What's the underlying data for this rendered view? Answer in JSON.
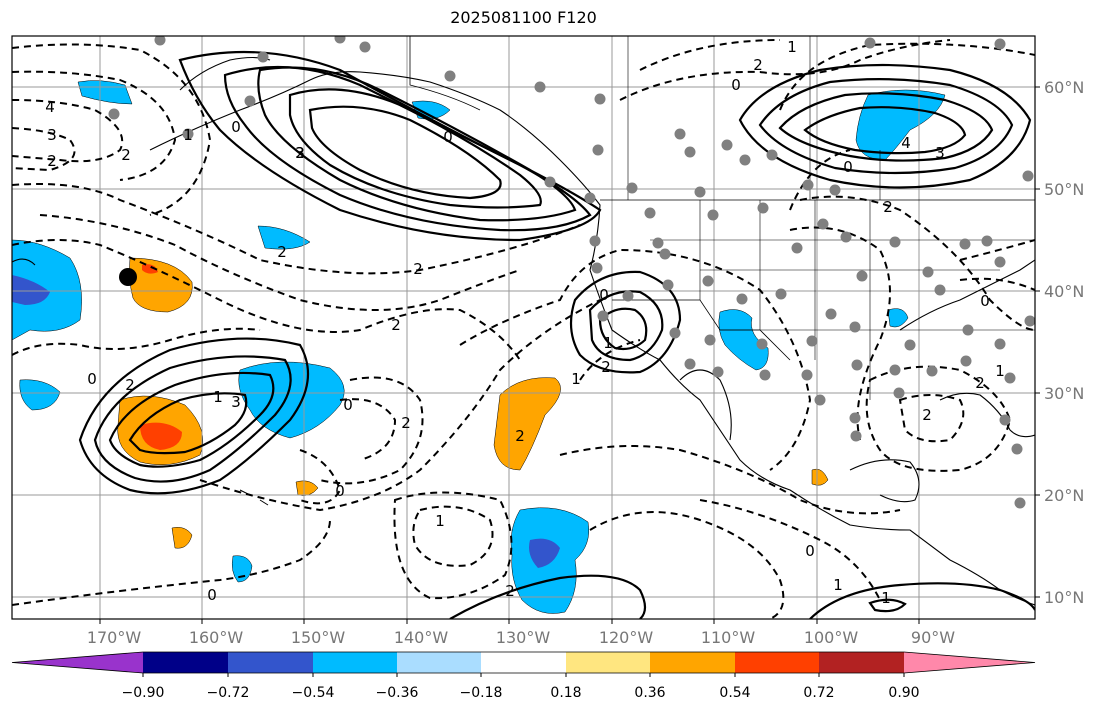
{
  "title": "2025081100 F120",
  "x_ticks": [
    "170°W",
    "160°W",
    "150°W",
    "140°W",
    "130°W",
    "120°W",
    "110°W",
    "100°W",
    "90°W"
  ],
  "y_ticks": [
    "60°N",
    "50°N",
    "40°N",
    "30°N",
    "20°N",
    "10°N"
  ],
  "colorbar": {
    "tick_labels": [
      "−0.90",
      "−0.72",
      "−0.54",
      "−0.36",
      "−0.18",
      "0.18",
      "0.36",
      "0.54",
      "0.72",
      "0.90"
    ],
    "colors": [
      "#9933cc",
      "#000088",
      "#3355cc",
      "#00bbff",
      "#aaddff",
      "#ffffff",
      "#ffe680",
      "#ffa500",
      "#ff4000",
      "#b22222",
      "#ff88aa"
    ]
  },
  "contour_labels": [
    "4",
    "3",
    "2",
    "2",
    "0",
    "2",
    "1",
    "0",
    "2",
    "0",
    "1",
    "3",
    "4",
    "0",
    "3",
    "2",
    "2",
    "2",
    "1",
    "0",
    "2",
    "0",
    "2",
    "0",
    "2",
    "1",
    "2",
    "2",
    "1",
    "1",
    "0",
    "0",
    "1",
    "1",
    "0",
    "3",
    "2",
    "1",
    "2",
    "2",
    "0"
  ],
  "colors": {
    "axis": "#000000",
    "grid": "#999999",
    "tick_text": "#777777",
    "coast": "#000000",
    "station": "#808080"
  }
}
